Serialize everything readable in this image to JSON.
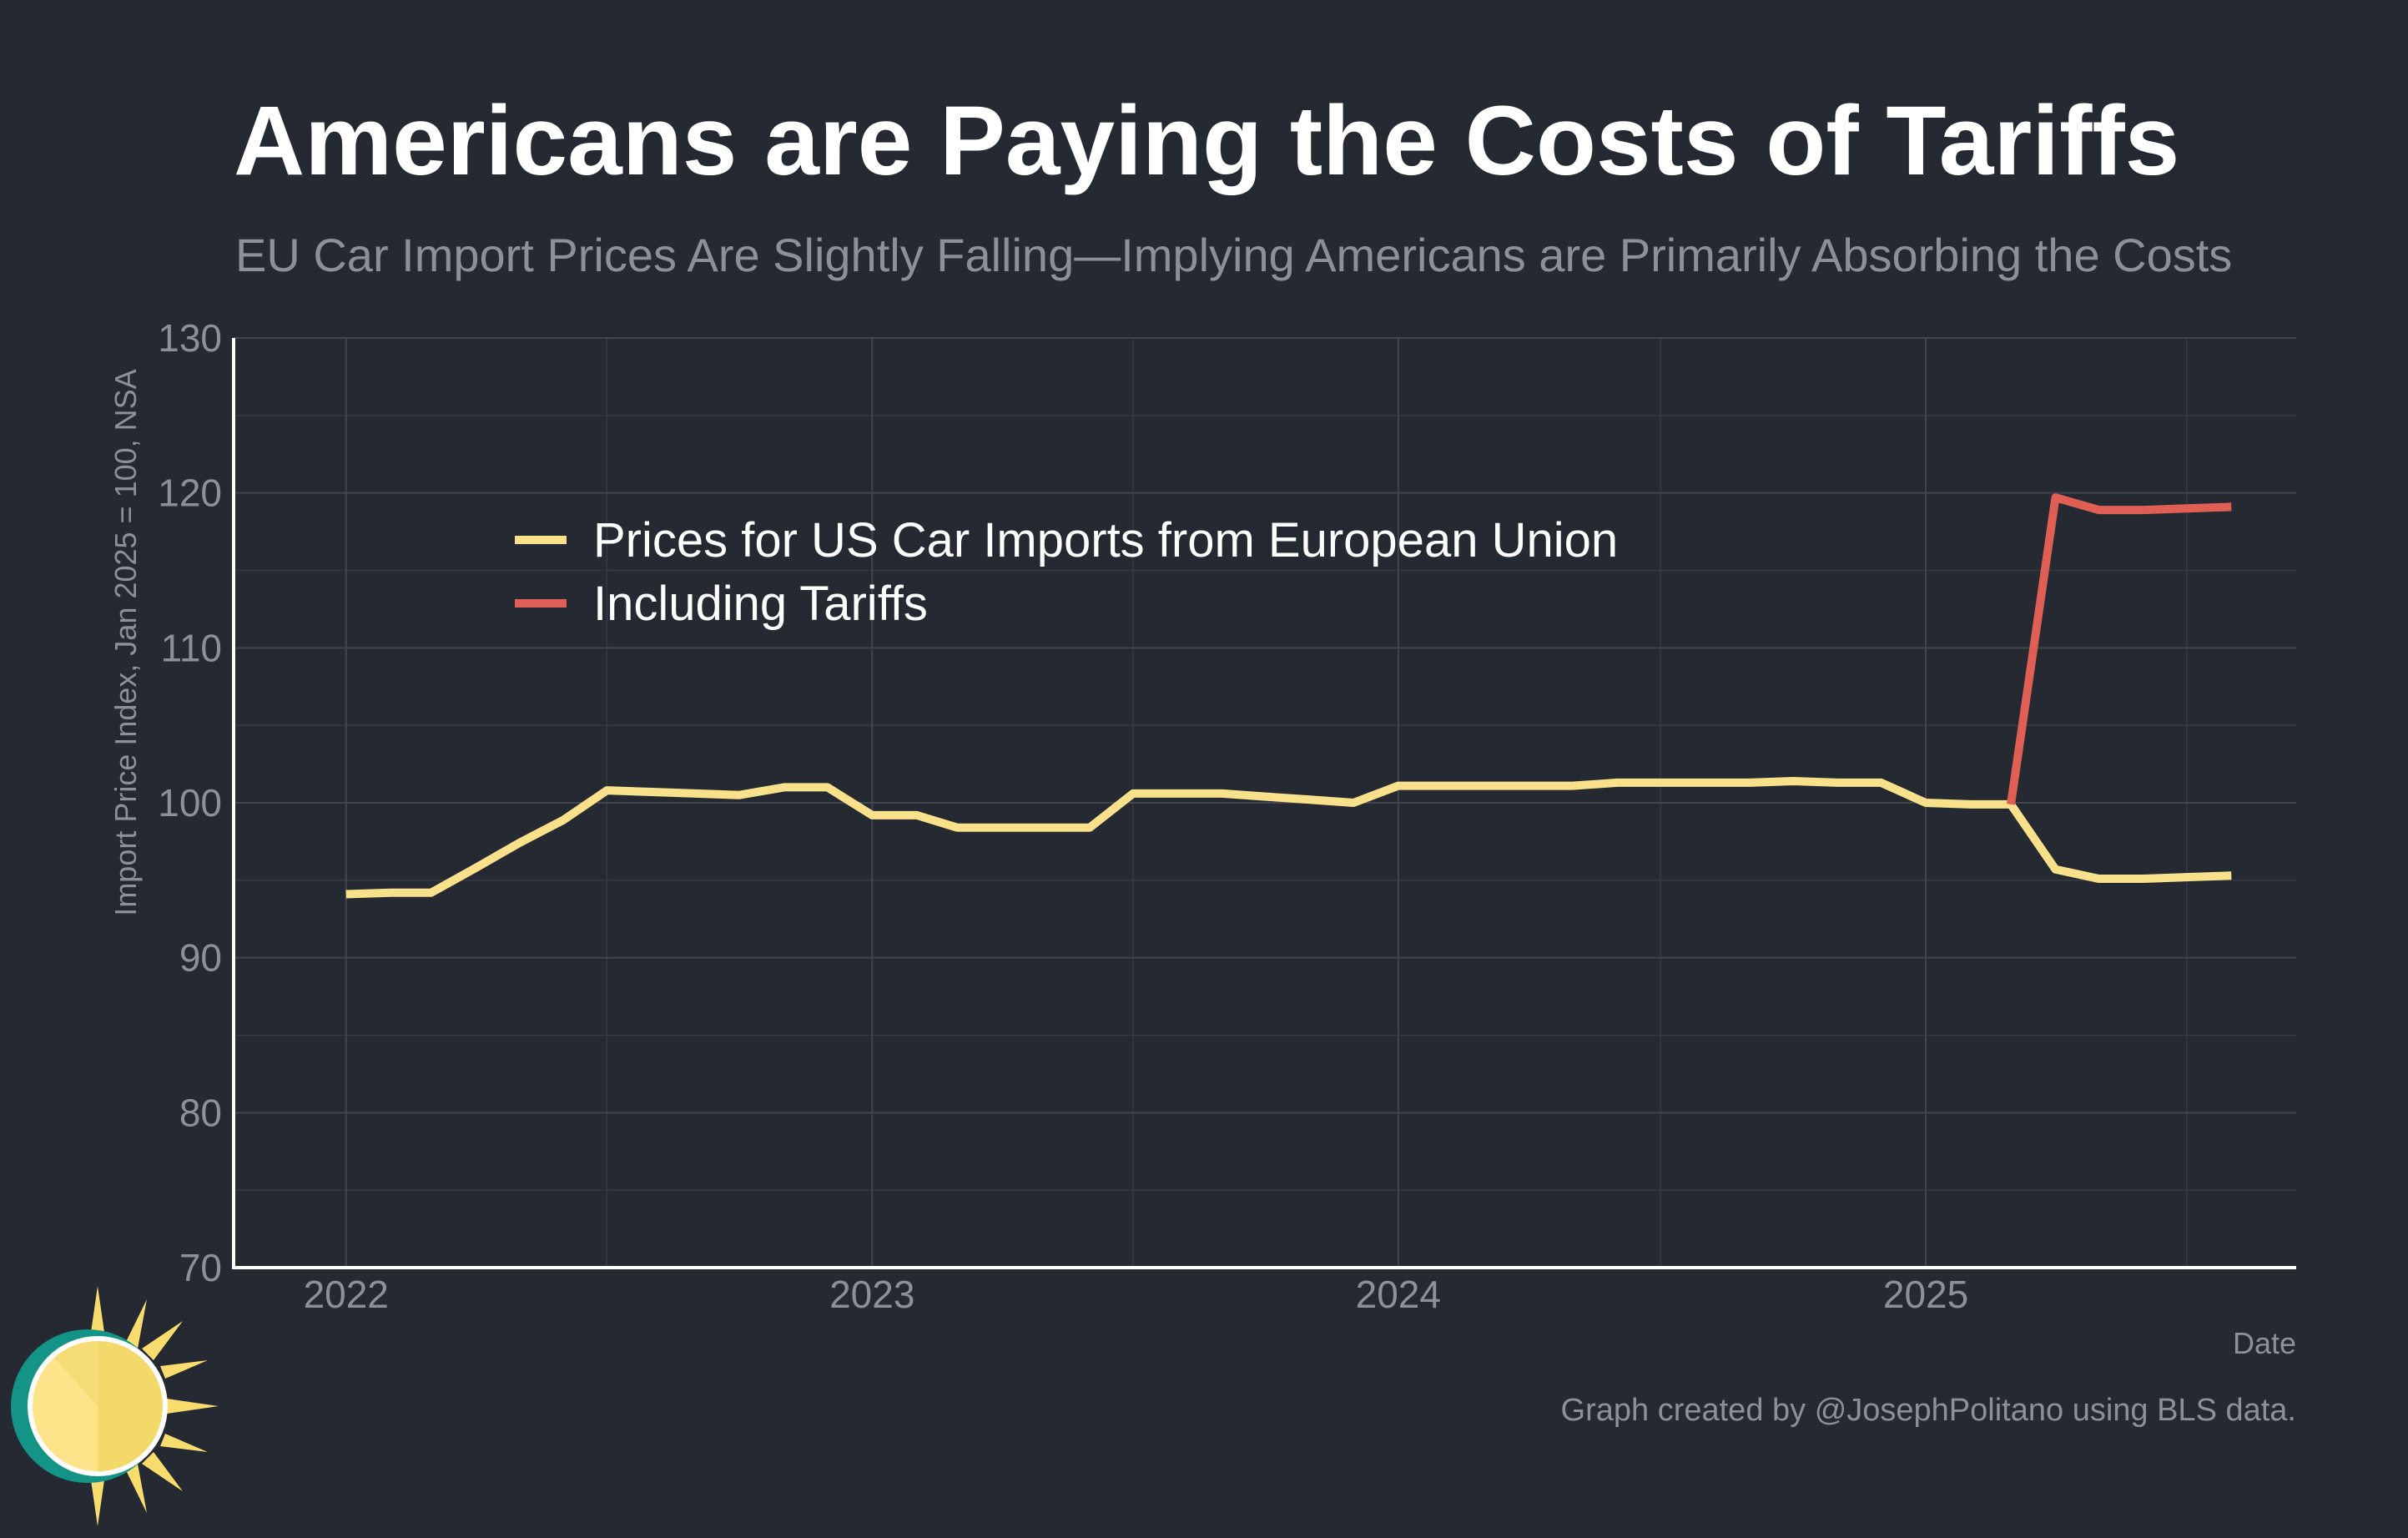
{
  "chart_data": {
    "type": "line",
    "title": "Americans are Paying the Costs of Tariffs",
    "subtitle": "EU Car Import Prices Are Slightly Falling—Implying Americans are Primarily Absorbing the Costs",
    "ylabel": "Import Price Index, Jan 2025 = 100, NSA",
    "xlabel": "Date",
    "ylim": [
      70,
      130
    ],
    "yticks": [
      "70",
      "80",
      "90",
      "100",
      "110",
      "120",
      "130"
    ],
    "xlim": [
      "2021-10-15",
      "2025-09-15"
    ],
    "xticks": [
      {
        "label": "2022",
        "date": "2022-01-01"
      },
      {
        "label": "2023",
        "date": "2023-01-01"
      },
      {
        "label": "2024",
        "date": "2024-01-01"
      },
      {
        "label": "2025",
        "date": "2025-01-01"
      }
    ],
    "grid": true,
    "legend_position": "upper-left",
    "series": [
      {
        "name": "Prices for US Car Imports from European Union",
        "color": "#f9e18c",
        "points": [
          [
            "2022-01-01",
            94.1
          ],
          [
            "2022-02-01",
            94.2
          ],
          [
            "2022-03-01",
            94.2
          ],
          [
            "2022-04-01",
            95.8
          ],
          [
            "2022-05-01",
            97.4
          ],
          [
            "2022-06-01",
            98.9
          ],
          [
            "2022-07-01",
            100.8
          ],
          [
            "2022-08-01",
            100.7
          ],
          [
            "2022-09-01",
            100.6
          ],
          [
            "2022-10-01",
            100.5
          ],
          [
            "2022-11-01",
            101.0
          ],
          [
            "2022-12-01",
            101.0
          ],
          [
            "2023-01-01",
            99.2
          ],
          [
            "2023-02-01",
            99.2
          ],
          [
            "2023-03-01",
            98.4
          ],
          [
            "2023-04-01",
            98.4
          ],
          [
            "2023-05-01",
            98.4
          ],
          [
            "2023-06-01",
            98.4
          ],
          [
            "2023-07-01",
            100.6
          ],
          [
            "2023-08-01",
            100.6
          ],
          [
            "2023-09-01",
            100.6
          ],
          [
            "2023-10-01",
            100.4
          ],
          [
            "2023-11-01",
            100.2
          ],
          [
            "2023-12-01",
            100.0
          ],
          [
            "2024-01-01",
            101.1
          ],
          [
            "2024-02-01",
            101.1
          ],
          [
            "2024-03-01",
            101.1
          ],
          [
            "2024-04-01",
            101.1
          ],
          [
            "2024-05-01",
            101.1
          ],
          [
            "2024-06-01",
            101.3
          ],
          [
            "2024-07-01",
            101.3
          ],
          [
            "2024-08-01",
            101.3
          ],
          [
            "2024-09-01",
            101.3
          ],
          [
            "2024-10-01",
            101.4
          ],
          [
            "2024-11-01",
            101.3
          ],
          [
            "2024-12-01",
            101.3
          ],
          [
            "2025-01-01",
            100.0
          ],
          [
            "2025-02-01",
            99.9
          ],
          [
            "2025-03-01",
            99.9
          ],
          [
            "2025-04-01",
            95.7
          ],
          [
            "2025-05-01",
            95.1
          ],
          [
            "2025-06-01",
            95.1
          ],
          [
            "2025-07-01",
            95.2
          ],
          [
            "2025-08-01",
            95.3
          ]
        ]
      },
      {
        "name": "Including Tariffs",
        "color": "#e05f54",
        "points": [
          [
            "2025-03-01",
            99.9
          ],
          [
            "2025-04-01",
            119.7
          ],
          [
            "2025-05-01",
            118.9
          ],
          [
            "2025-06-01",
            118.9
          ],
          [
            "2025-07-01",
            119.0
          ],
          [
            "2025-08-01",
            119.1
          ]
        ]
      }
    ]
  },
  "footer": {
    "credit": "Graph created by @JosephPolitano using BLS data."
  },
  "logo": {
    "icon": "sun-logo-icon"
  }
}
